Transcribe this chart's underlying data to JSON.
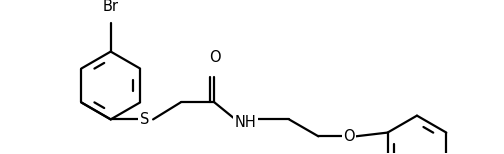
{
  "background": "#ffffff",
  "line_color": "#000000",
  "line_width": 1.6,
  "font_size": 10.5,
  "figsize": [
    5.04,
    1.54
  ],
  "dpi": 100,
  "xlim": [
    0.0,
    5.1
  ],
  "ylim": [
    -0.2,
    1.3
  ]
}
